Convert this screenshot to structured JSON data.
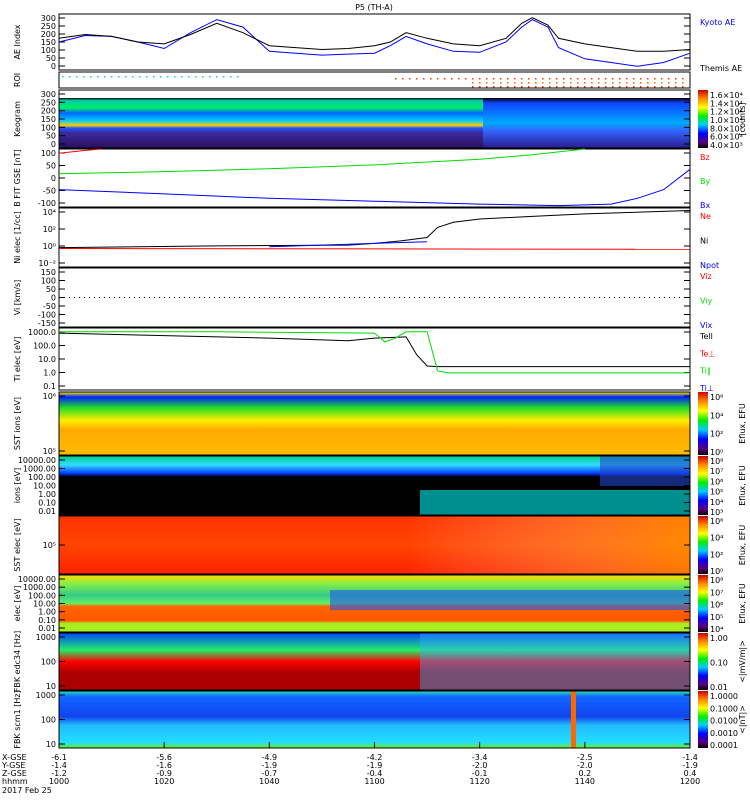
{
  "title": "P5 (TH-A)",
  "date": "2017 Feb 25",
  "chart_data": {
    "type": "line",
    "x_unit": "minutes after 10:00 UT",
    "xlim": [
      0,
      120
    ],
    "time_ticks": [
      "1000",
      "1020",
      "1040",
      "1100",
      "1120",
      "1140",
      "1200"
    ],
    "ephemeris": {
      "labels": [
        "X-GSE",
        "Y-GSE",
        "Z-GSE",
        "hhmm"
      ],
      "x_gse": [
        "-6.1",
        "-5.6",
        "-4.9",
        "-4.2",
        "-3.4",
        "-2.5",
        "-1.4"
      ],
      "y_gse": [
        "-1.4",
        "-1.6",
        "-1.9",
        "-1.9",
        "-2.0",
        "-2.0",
        "-1.9"
      ],
      "z_gse": [
        "-1.2",
        "-0.9",
        "-0.7",
        "-0.4",
        "-0.1",
        "0.2",
        "0.4"
      ]
    },
    "panels": [
      {
        "id": "ae",
        "ylabel": "AE Index",
        "ylim": [
          0,
          300
        ],
        "ticks": [
          "300",
          "250",
          "200",
          "150",
          "100",
          "50",
          "0"
        ],
        "series": [
          {
            "name": "Kyoto AE",
            "color": "#0000ff",
            "x": [
              0,
              5,
              10,
              15,
              20,
              25,
              30,
              35,
              40,
              45,
              50,
              55,
              60,
              63,
              66,
              70,
              75,
              80,
              85,
              88,
              90,
              93,
              95,
              100,
              105,
              110,
              115,
              120
            ],
            "y": [
              150,
              185,
              180,
              150,
              115,
              200,
              270,
              230,
              100,
              90,
              80,
              85,
              90,
              130,
              180,
              140,
              100,
              95,
              150,
              230,
              270,
              230,
              120,
              60,
              40,
              20,
              40,
              90
            ]
          },
          {
            "name": "Themis AE",
            "color": "#000000",
            "x": [
              0,
              5,
              10,
              15,
              20,
              25,
              30,
              35,
              40,
              45,
              50,
              55,
              60,
              63,
              66,
              70,
              75,
              80,
              85,
              88,
              90,
              93,
              95,
              100,
              105,
              110,
              115,
              120
            ],
            "y": [
              170,
              190,
              180,
              150,
              140,
              190,
              250,
              200,
              130,
              120,
              110,
              115,
              130,
              150,
              200,
              170,
              140,
              130,
              170,
              250,
              280,
              240,
              170,
              140,
              120,
              100,
              100,
              110
            ]
          }
        ]
      },
      {
        "id": "roi",
        "ylabel": "ROI"
      },
      {
        "id": "keogram",
        "ylabel": "Keogram",
        "ylim": [
          0,
          300
        ],
        "ticks": [
          "300",
          "250",
          "200",
          "150",
          "100",
          "50",
          "0"
        ],
        "colorbar": {
          "label": "[counts]",
          "ticks": [
            "1.6×10⁴",
            "1.4×10⁴",
            "1.2×10⁴",
            "1.0×10⁴",
            "8.0×10³",
            "6.0×10³",
            "4.0×10³"
          ]
        }
      },
      {
        "id": "bfield",
        "ylabel": "B FIT GSE [nT]",
        "ylim": [
          -100,
          100
        ],
        "ticks": [
          "100",
          "50",
          "0",
          "-50",
          "-100"
        ],
        "series": [
          {
            "name": "Bz",
            "color": "#ff0000",
            "x": [
              0,
              5,
              8
            ],
            "y": [
              85,
              95,
              100
            ]
          },
          {
            "name": "By",
            "color": "#00dd00",
            "x": [
              0,
              20,
              40,
              60,
              80,
              90,
              100
            ],
            "y": [
              15,
              22,
              32,
              45,
              65,
              80,
              100
            ]
          },
          {
            "name": "Bx",
            "color": "#0000ff",
            "x": [
              0,
              20,
              40,
              60,
              80,
              95,
              105,
              110,
              115,
              120
            ],
            "y": [
              -40,
              -55,
              -70,
              -80,
              -90,
              -95,
              -90,
              -70,
              -40,
              30
            ]
          }
        ]
      },
      {
        "id": "density",
        "ylabel": "Ni elec [1/cc]",
        "scale": "log",
        "ylim": [
          -2.5,
          4.5
        ],
        "ticks": [
          "10⁴",
          "10²",
          "10⁰",
          "10⁻²"
        ],
        "series": [
          {
            "name": "Ne",
            "color": "#ff0000",
            "x": [
              0,
              120
            ],
            "y": [
              -0.3,
              -0.4
            ]
          },
          {
            "name": "Ni",
            "color": "#000000",
            "x": [
              0,
              30,
              55,
              60,
              65,
              70,
              72,
              75,
              80,
              90,
              100,
              120
            ],
            "y": [
              -0.2,
              0,
              0.1,
              0.3,
              0.6,
              1,
              2.2,
              2.8,
              3.2,
              3.5,
              3.8,
              4.2
            ]
          },
          {
            "name": "Npot",
            "color": "#0000ff",
            "x": [
              40,
              55,
              70
            ],
            "y": [
              -0.1,
              0.2,
              0.5
            ]
          }
        ]
      },
      {
        "id": "velocity",
        "ylabel": "Vi [km/s]",
        "ylim": [
          -150,
          150
        ],
        "ticks": [
          "150",
          "100",
          "50",
          "0",
          "-50",
          "-100",
          "-150"
        ],
        "series": [
          {
            "name": "Viz",
            "color": "#ff0000"
          },
          {
            "name": "Viy",
            "color": "#00dd00"
          },
          {
            "name": "Vix",
            "color": "#0000ff"
          }
        ]
      },
      {
        "id": "temperature",
        "ylabel": "Ti elec [eV]",
        "scale": "log",
        "ylim": [
          -1.3,
          3.6
        ],
        "ticks": [
          "1000.0",
          "100.0",
          "10.0",
          "1.0",
          "0.1"
        ],
        "series": [
          {
            "name": "Tell",
            "color": "#000000",
            "x": [
              0,
              20,
              40,
              55,
              60,
              66,
              68,
              70,
              72,
              120
            ],
            "y": [
              3.2,
              3.0,
              2.8,
              2.6,
              2.8,
              2.9,
              1.5,
              0.6,
              0.55,
              0.55
            ]
          },
          {
            "name": "Te⊥",
            "color": "#ff0000"
          },
          {
            "name": "Ti∥",
            "color": "#00dd00",
            "x": [
              0,
              30,
              60,
              62,
              64,
              66,
              70,
              72,
              74,
              120
            ],
            "y": [
              3.3,
              3.3,
              3.2,
              2.5,
              2.8,
              3.3,
              3.3,
              0.2,
              0.05,
              0.05
            ]
          },
          {
            "name": "Ti⊥",
            "color": "#0000ff"
          }
        ]
      },
      {
        "id": "sst_ions",
        "ylabel": "SST ions [eV]",
        "ticks": [
          "10⁶",
          "10⁵"
        ],
        "colorbar": {
          "label": "Eflux, EFU",
          "ticks": [
            "10⁶",
            "10⁴",
            "10²",
            "10⁰"
          ]
        }
      },
      {
        "id": "esa_ions",
        "ylabel": "ions [eV]",
        "ticks": [
          "10000.00",
          "1000.00",
          "100.00",
          "10.00",
          "1.00",
          "0.10",
          "0.01"
        ],
        "colorbar": {
          "label": "Eflux, EFU",
          "ticks": [
            "10⁸",
            "10⁷",
            "10⁶",
            "10⁵",
            "10⁴",
            "10³"
          ]
        }
      },
      {
        "id": "sst_elec",
        "ylabel": "SST elec [eV]",
        "ticks": [
          "10⁵"
        ],
        "colorbar": {
          "label": "Eflux, EFU",
          "ticks": [
            "10⁶",
            "10⁴",
            "10²",
            "10⁰"
          ]
        }
      },
      {
        "id": "esa_elec",
        "ylabel": "elec [eV]",
        "ticks": [
          "10000.00",
          "1000.00",
          "100.00",
          "10.00",
          "1.00",
          "0.10",
          "0.01"
        ],
        "colorbar": {
          "label": "Eflux, EFU",
          "ticks": [
            "10⁸",
            "10⁷",
            "10⁶",
            "10⁵",
            "10⁴"
          ]
        }
      },
      {
        "id": "fbk_e",
        "ylabel": "FBK edc34 [Hz]",
        "ticks": [
          "1000",
          "100",
          "10"
        ],
        "colorbar": {
          "label": "<|mV/m|>",
          "ticks": [
            "1.00",
            "0.10",
            "0.01"
          ]
        }
      },
      {
        "id": "fbk_b",
        "ylabel": "FBK scm1 [Hz]",
        "ticks": [
          "1000",
          "100",
          "10"
        ],
        "colorbar": {
          "label": "<|nT|>",
          "ticks": [
            "1.0000",
            "0.1000",
            "0.0100",
            "0.0010",
            "0.0001"
          ]
        }
      }
    ]
  }
}
